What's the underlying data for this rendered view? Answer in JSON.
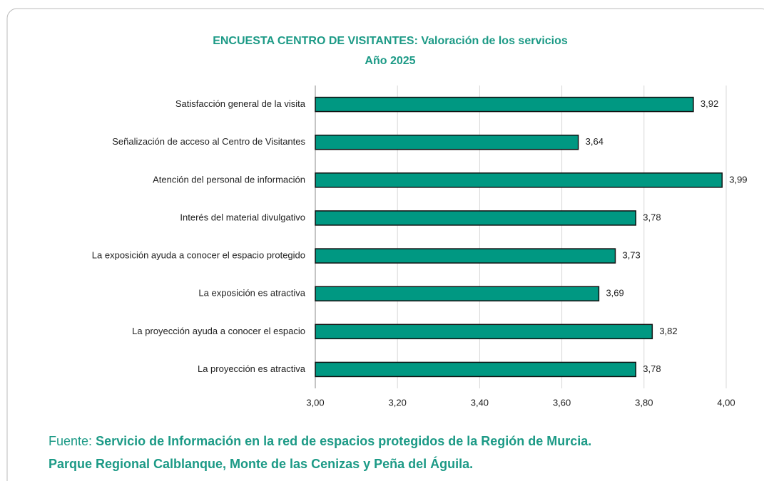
{
  "chart_data": {
    "type": "hbar",
    "title": "ENCUESTA CENTRO DE VISITANTES: Valoración de los servicios",
    "subtitle": "Año 2025",
    "categories": [
      "Satisfacción general de la visita",
      "Señalización de acceso al Centro de Visitantes",
      "Atención del personal de información",
      "Interés del material divulgativo",
      "La exposición ayuda a conocer el espacio protegido",
      "La exposición es atractiva",
      "La proyección ayuda a conocer el espacio",
      "La proyección es atractiva"
    ],
    "values": [
      3.92,
      3.64,
      3.99,
      3.78,
      3.73,
      3.69,
      3.82,
      3.78
    ],
    "value_labels": [
      "3,92",
      "3,64",
      "3,99",
      "3,78",
      "3,73",
      "3,69",
      "3,82",
      "3,78"
    ],
    "color": "#009882",
    "xlim": [
      3,
      4
    ],
    "xticks": [
      {
        "value": 3,
        "label": "3,00"
      },
      {
        "value": 3.2,
        "label": "3,20"
      },
      {
        "value": 3.4,
        "label": "3,40"
      },
      {
        "value": 3.6,
        "label": "3,60"
      },
      {
        "value": 3.8,
        "label": "3,80"
      },
      {
        "value": 4,
        "label": "4,00"
      }
    ],
    "grid": true,
    "source_label": "Fuente:",
    "source_lines": [
      "Servicio de Información en la red de espacios protegidos de la Región de Murcia.",
      "Parque Regional Calblanque, Monte de las Cenizas y Peña del Águila."
    ]
  }
}
